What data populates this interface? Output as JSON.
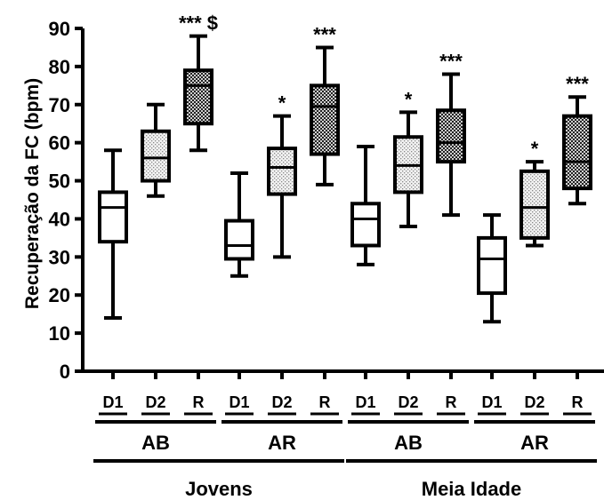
{
  "chart_data": {
    "type": "box",
    "ylabel": "Recuperação da FC (bpm)",
    "ylim": [
      0,
      90
    ],
    "y_ticks": [
      0,
      10,
      20,
      30,
      40,
      50,
      60,
      70,
      80,
      90
    ],
    "categories": [
      "D1",
      "D2",
      "R",
      "D1",
      "D2",
      "R",
      "D1",
      "D2",
      "R",
      "D1",
      "D2",
      "R"
    ],
    "boxes": [
      {
        "category": "D1",
        "min": 14,
        "q1": 34,
        "median": 43,
        "q3": 47,
        "max": 58,
        "fill": "white",
        "sig": ""
      },
      {
        "category": "D2",
        "min": 46,
        "q1": 50,
        "median": 56,
        "q3": 63,
        "max": 70,
        "fill": "light-dots",
        "sig": ""
      },
      {
        "category": "R",
        "min": 58,
        "q1": 65,
        "median": 75,
        "q3": 79,
        "max": 88,
        "fill": "dark-dots",
        "sig": "*** $"
      },
      {
        "category": "D1",
        "min": 25,
        "q1": 29.5,
        "median": 33,
        "q3": 39.5,
        "max": 52,
        "fill": "white",
        "sig": ""
      },
      {
        "category": "D2",
        "min": 30,
        "q1": 46.5,
        "median": 53.5,
        "q3": 58.5,
        "max": 67,
        "fill": "light-dots",
        "sig": "*"
      },
      {
        "category": "R",
        "min": 49,
        "q1": 57,
        "median": 69.5,
        "q3": 75,
        "max": 85,
        "fill": "dark-dots",
        "sig": "***"
      },
      {
        "category": "D1",
        "min": 28,
        "q1": 33,
        "median": 40,
        "q3": 44,
        "max": 59,
        "fill": "white",
        "sig": ""
      },
      {
        "category": "D2",
        "min": 38,
        "q1": 47,
        "median": 54,
        "q3": 61.5,
        "max": 68,
        "fill": "light-dots",
        "sig": "*"
      },
      {
        "category": "R",
        "min": 41,
        "q1": 55,
        "median": 60,
        "q3": 68.5,
        "max": 78,
        "fill": "dark-dots",
        "sig": "***"
      },
      {
        "category": "D1",
        "min": 13,
        "q1": 20.5,
        "median": 29.5,
        "q3": 35,
        "max": 41,
        "fill": "white",
        "sig": ""
      },
      {
        "category": "D2",
        "min": 33,
        "q1": 35,
        "median": 43,
        "q3": 52.5,
        "max": 55,
        "fill": "light-dots",
        "sig": "*"
      },
      {
        "category": "R",
        "min": 44,
        "q1": 48,
        "median": 55,
        "q3": 67,
        "max": 72,
        "fill": "dark-dots",
        "sig": "***"
      }
    ],
    "groups": [
      {
        "label": "AB",
        "first": 0,
        "last": 2
      },
      {
        "label": "AR",
        "first": 3,
        "last": 5
      },
      {
        "label": "AB",
        "first": 6,
        "last": 8
      },
      {
        "label": "AR",
        "first": 9,
        "last": 11
      }
    ],
    "supergroups": [
      {
        "label": "Jovens",
        "first": 0,
        "last": 5
      },
      {
        "label": "Meia Idade",
        "first": 6,
        "last": 11
      }
    ],
    "grid": false,
    "legend": "none"
  }
}
